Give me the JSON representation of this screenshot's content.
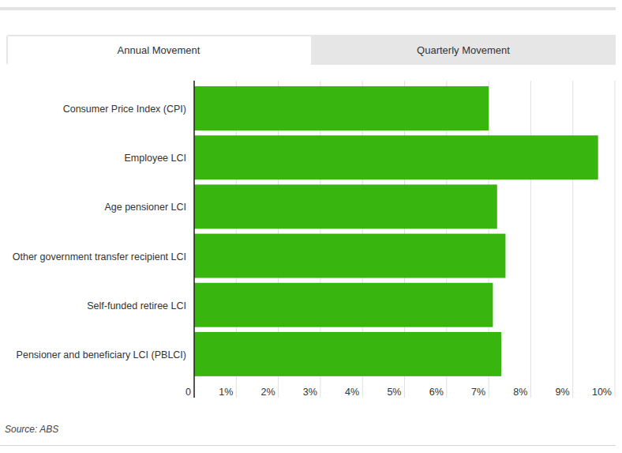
{
  "tabs": [
    "Annual Movement",
    "Quarterly Movement"
  ],
  "chart_data": {
    "type": "bar",
    "orientation": "horizontal",
    "categories": [
      "Consumer Price Index (CPI)",
      "Employee LCI",
      "Age pensioner LCI",
      "Other government transfer recipient LCI",
      "Self-funded retiree LCI",
      "Pensioner and beneficiary LCI (PBLCI)"
    ],
    "values": [
      7.0,
      9.6,
      7.2,
      7.4,
      7.1,
      7.3
    ],
    "color": "#38b50f",
    "xlim": [
      0,
      10
    ],
    "xticks": [
      0,
      {
        "value": 1,
        "label": "1%"
      },
      {
        "value": 2,
        "label": "2%"
      },
      {
        "value": 3,
        "label": "3%"
      },
      {
        "value": 4,
        "label": "4%"
      },
      {
        "value": 5,
        "label": "5%"
      },
      {
        "value": 6,
        "label": "6%"
      },
      {
        "value": 7,
        "label": "7%"
      },
      {
        "value": 8,
        "label": "8%"
      },
      {
        "value": 9,
        "label": "9%"
      },
      {
        "value": 10,
        "label": "10%"
      }
    ],
    "grid": true,
    "source": "Source: ABS"
  }
}
